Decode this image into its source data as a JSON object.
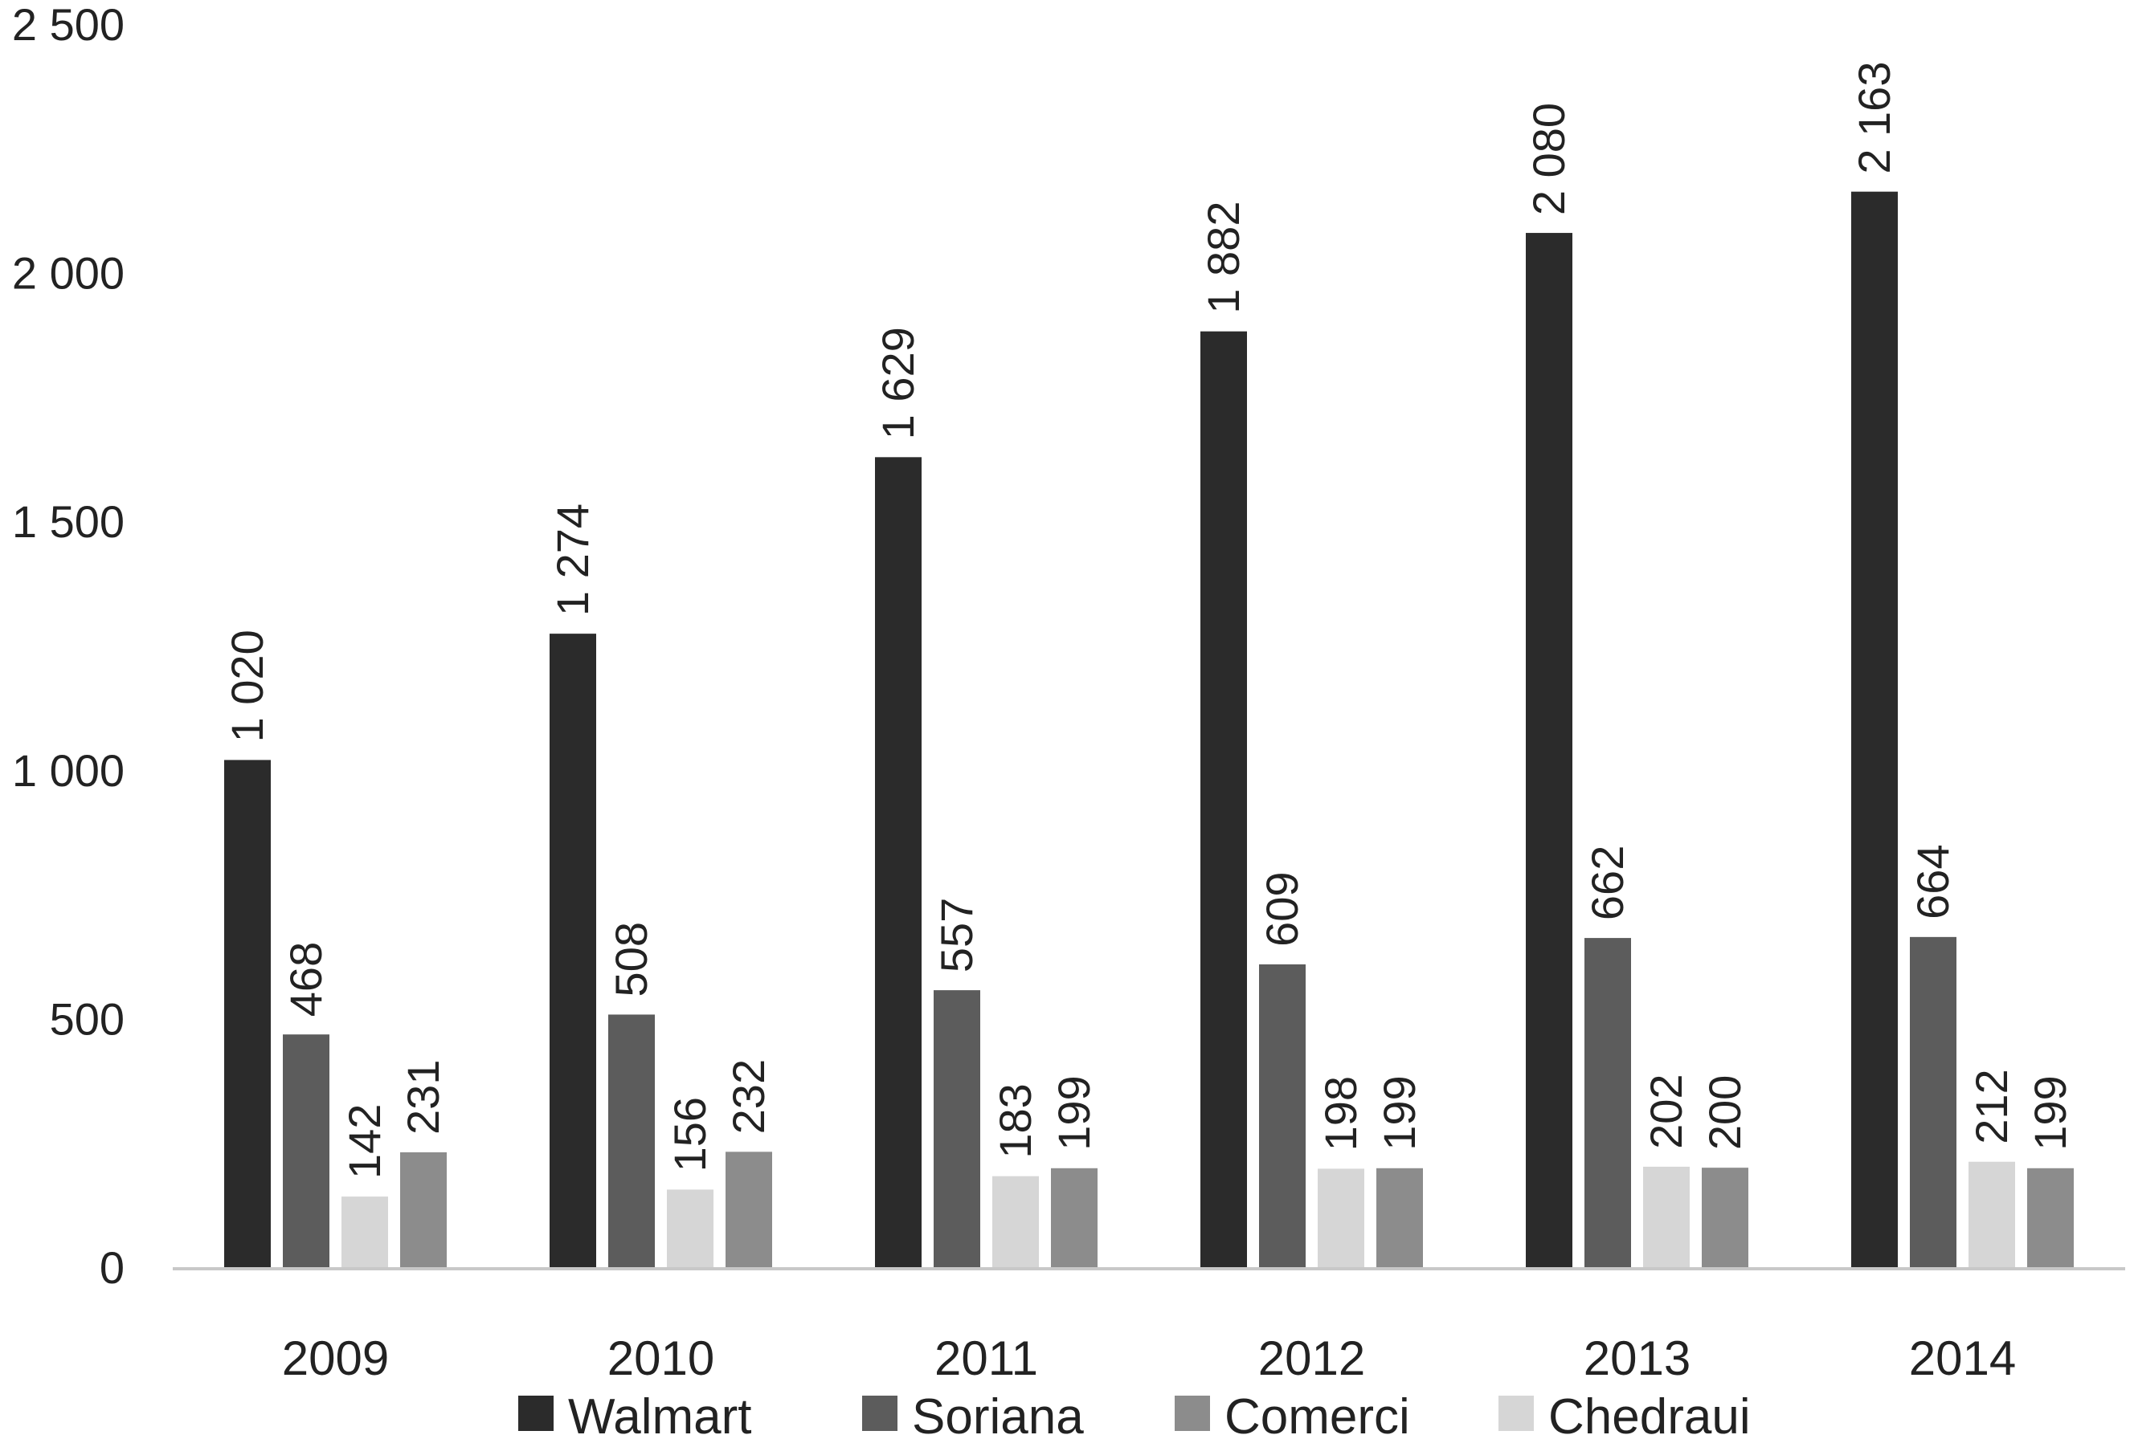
{
  "chart_data": {
    "type": "bar",
    "categories": [
      "2009",
      "2010",
      "2011",
      "2012",
      "2013",
      "2014"
    ],
    "series": [
      {
        "name": "Walmart",
        "color": "#2b2b2b",
        "values": [
          1020,
          1274,
          1629,
          1882,
          2080,
          2163
        ],
        "labels": [
          "1 020",
          "1 274",
          "1 629",
          "1 882",
          "2 080",
          "2 163"
        ]
      },
      {
        "name": "Soriana",
        "color": "#5c5c5c",
        "values": [
          468,
          508,
          557,
          609,
          662,
          664
        ],
        "labels": [
          "468",
          "508",
          "557",
          "609",
          "662",
          "664"
        ]
      },
      {
        "name": "Chedraui",
        "color": "#d6d6d6",
        "values": [
          142,
          156,
          183,
          198,
          202,
          212
        ],
        "labels": [
          "142",
          "156",
          "183",
          "198",
          "202",
          "212"
        ]
      },
      {
        "name": "Comerci",
        "color": "#8c8c8c",
        "values": [
          231,
          232,
          199,
          199,
          200,
          199
        ],
        "labels": [
          "231",
          "232",
          "199",
          "199",
          "200",
          "199"
        ]
      }
    ],
    "ylim": [
      0,
      2500
    ],
    "yticks": [
      0,
      500,
      1000,
      1500,
      2000,
      2500
    ],
    "ytick_labels": [
      "0",
      "500",
      "1 000",
      "1 500",
      "2 000",
      "2 500"
    ],
    "legend": [
      "Walmart",
      "Soriana",
      "Comerci",
      "Chedraui"
    ],
    "legend_position": "bottom",
    "grid": false,
    "title": "",
    "xlabel": "",
    "ylabel": ""
  }
}
